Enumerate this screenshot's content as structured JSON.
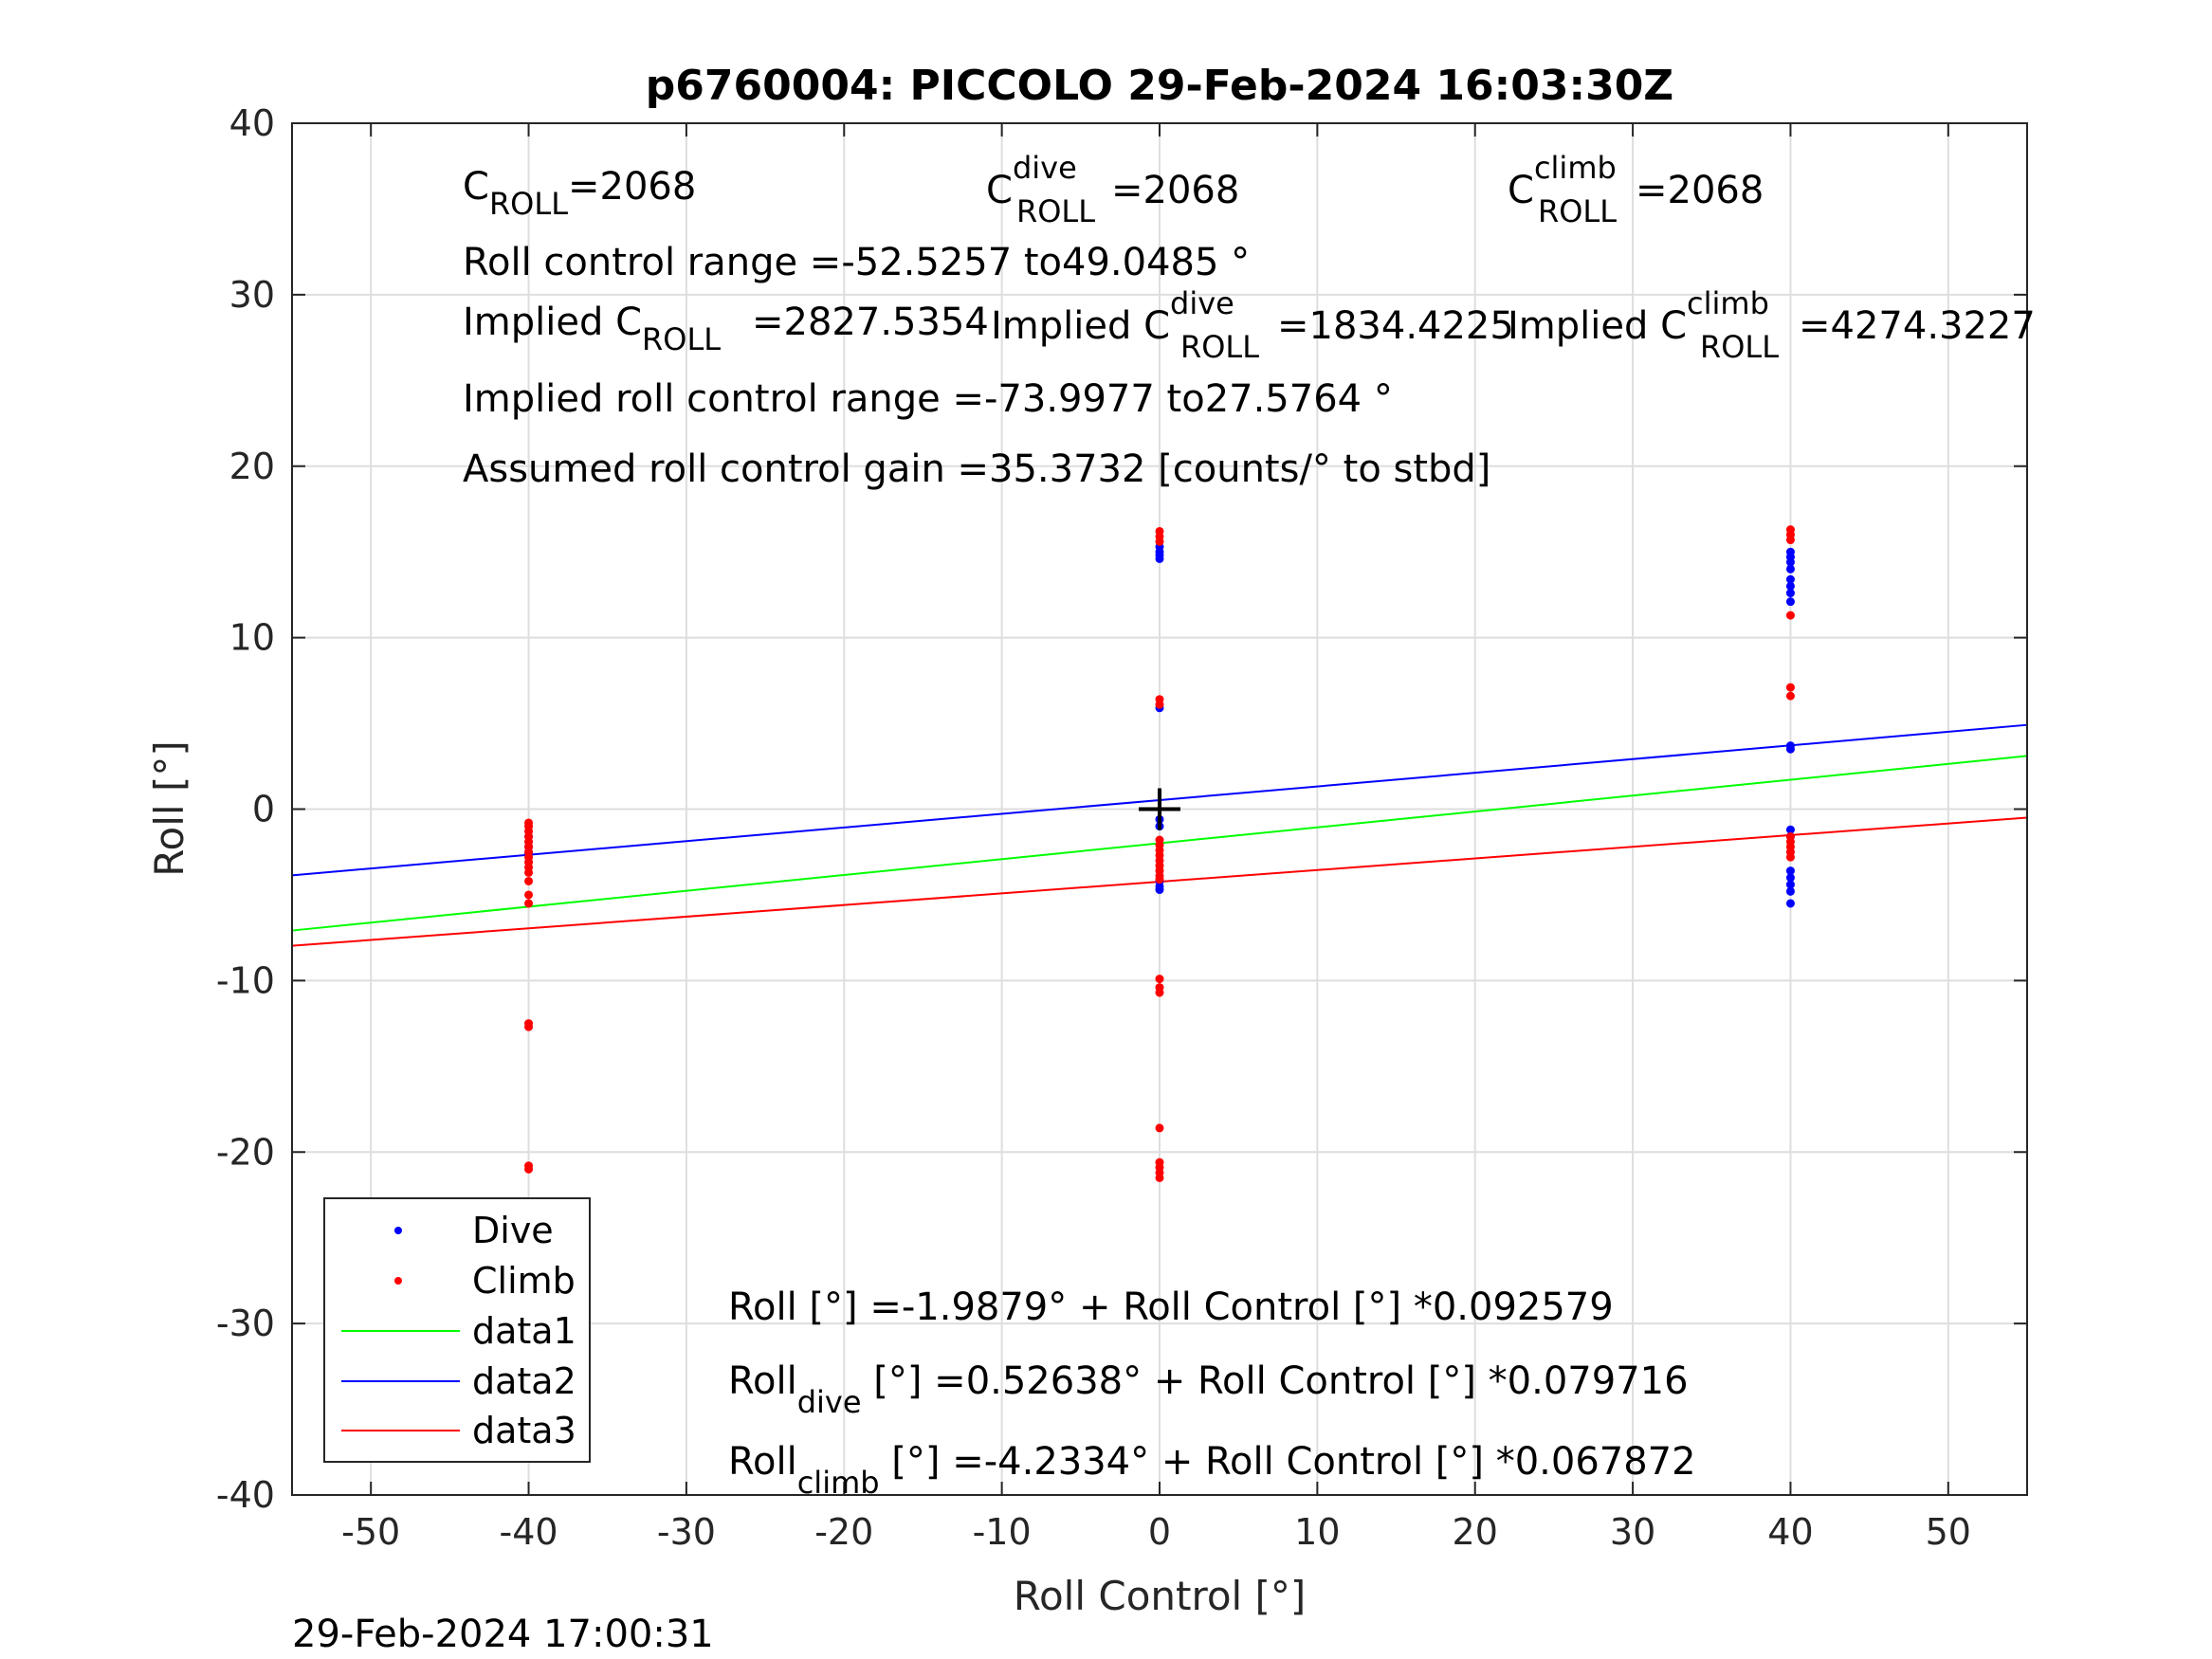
{
  "title": "p6760004: PICCOLO 29-Feb-2024 16:03:30Z",
  "timestamp": "29-Feb-2024 17:00:31",
  "annotations": {
    "c_roll": {
      "base": "C",
      "sub": "ROLL",
      "value": "=2068"
    },
    "c_roll_dive": {
      "base": "C",
      "sup": "dive",
      "sub": "ROLL",
      "value": "=2068"
    },
    "c_roll_climb": {
      "base": "C",
      "sup": "climb",
      "sub": "ROLL",
      "value": "=2068"
    },
    "roll_control_range": "Roll control range =-52.5257 to49.0485 °",
    "implied_c_roll": {
      "prefix": "Implied C",
      "sub": "ROLL",
      "value": "=2827.5354"
    },
    "implied_c_roll_dive": {
      "prefix": "Implied C",
      "sup": "dive",
      "sub": "ROLL",
      "value": "=1834.4225"
    },
    "implied_c_roll_climb": {
      "prefix": "Implied C",
      "sup": "climb",
      "sub": "ROLL",
      "value": "=4274.3227"
    },
    "implied_range": "Implied roll control range =-73.9977 to27.5764 °",
    "assumed_gain": "Assumed roll control gain =35.3732 [counts/° to stbd]",
    "fit_all": "Roll [°] =-1.9879° + Roll Control [°] *0.092579",
    "fit_dive": {
      "base": "Roll",
      "sub": "dive",
      "rest": " [°] =0.52638° + Roll Control [°] *0.079716"
    },
    "fit_climb": {
      "base": "Roll",
      "sub": "climb",
      "rest": " [°] =-4.2334° + Roll Control [°] *0.067872"
    }
  },
  "chart_data": {
    "type": "scatter",
    "title": "p6760004: PICCOLO 29-Feb-2024 16:03:30Z",
    "xlabel": "Roll Control [°]",
    "ylabel": "Roll [°]",
    "xlim": [
      -55,
      55
    ],
    "ylim": [
      -40,
      40
    ],
    "xticks": [
      -50,
      -40,
      -30,
      -20,
      -10,
      0,
      10,
      20,
      30,
      40,
      50
    ],
    "yticks": [
      -40,
      -30,
      -20,
      -10,
      0,
      10,
      20,
      30,
      40
    ],
    "grid": true,
    "legend_position": "bottom-left",
    "series": [
      {
        "name": "Dive",
        "kind": "points",
        "color": "#0000ff",
        "points": [
          [
            -40,
            -1.6
          ],
          [
            -40,
            -2.2
          ],
          [
            -40,
            -2.6
          ],
          [
            0,
            15.3
          ],
          [
            0,
            15.0
          ],
          [
            0,
            14.8
          ],
          [
            0,
            14.6
          ],
          [
            0,
            5.9
          ],
          [
            0,
            -0.6
          ],
          [
            0,
            -1.0
          ],
          [
            0,
            -4.2
          ],
          [
            0,
            -4.5
          ],
          [
            0,
            -4.7
          ],
          [
            40,
            15.0
          ],
          [
            40,
            14.7
          ],
          [
            40,
            14.4
          ],
          [
            40,
            14.0
          ],
          [
            40,
            13.4
          ],
          [
            40,
            13.0
          ],
          [
            40,
            12.6
          ],
          [
            40,
            12.1
          ],
          [
            40,
            3.7
          ],
          [
            40,
            3.5
          ],
          [
            40,
            -1.2
          ],
          [
            40,
            -1.6
          ],
          [
            40,
            -3.6
          ],
          [
            40,
            -4.0
          ],
          [
            40,
            -4.4
          ],
          [
            40,
            -4.8
          ],
          [
            40,
            -5.5
          ]
        ]
      },
      {
        "name": "Climb",
        "kind": "points",
        "color": "#ff0000",
        "points": [
          [
            -40,
            -0.8
          ],
          [
            -40,
            -1.0
          ],
          [
            -40,
            -1.3
          ],
          [
            -40,
            -1.6
          ],
          [
            -40,
            -1.9
          ],
          [
            -40,
            -2.2
          ],
          [
            -40,
            -2.5
          ],
          [
            -40,
            -2.8
          ],
          [
            -40,
            -3.1
          ],
          [
            -40,
            -3.4
          ],
          [
            -40,
            -3.7
          ],
          [
            -40,
            -4.2
          ],
          [
            -40,
            -5.0
          ],
          [
            -40,
            -5.5
          ],
          [
            -40,
            -12.5
          ],
          [
            -40,
            -12.7
          ],
          [
            -40,
            -20.8
          ],
          [
            -40,
            -21.0
          ],
          [
            0,
            16.2
          ],
          [
            0,
            15.9
          ],
          [
            0,
            15.6
          ],
          [
            0,
            6.4
          ],
          [
            0,
            6.1
          ],
          [
            0,
            -1.8
          ],
          [
            0,
            -2.1
          ],
          [
            0,
            -2.4
          ],
          [
            0,
            -2.7
          ],
          [
            0,
            -3.0
          ],
          [
            0,
            -3.3
          ],
          [
            0,
            -3.6
          ],
          [
            0,
            -3.9
          ],
          [
            0,
            -4.1
          ],
          [
            0,
            -9.9
          ],
          [
            0,
            -10.4
          ],
          [
            0,
            -10.7
          ],
          [
            0,
            -18.6
          ],
          [
            0,
            -20.6
          ],
          [
            0,
            -20.9
          ],
          [
            0,
            -21.2
          ],
          [
            0,
            -21.5
          ],
          [
            40,
            16.3
          ],
          [
            40,
            16.0
          ],
          [
            40,
            15.7
          ],
          [
            40,
            11.3
          ],
          [
            40,
            7.1
          ],
          [
            40,
            6.6
          ],
          [
            40,
            -1.6
          ],
          [
            40,
            -1.9
          ],
          [
            40,
            -2.2
          ],
          [
            40,
            -2.5
          ],
          [
            40,
            -2.8
          ]
        ]
      },
      {
        "name": "data1",
        "kind": "line",
        "color": "#00ff00",
        "points": [
          [
            -55,
            -7.08
          ],
          [
            55,
            3.1
          ]
        ]
      },
      {
        "name": "data2",
        "kind": "line",
        "color": "#0000ff",
        "points": [
          [
            -55,
            -3.86
          ],
          [
            55,
            4.91
          ]
        ]
      },
      {
        "name": "data3",
        "kind": "line",
        "color": "#ff0000",
        "points": [
          [
            -55,
            -7.97
          ],
          [
            55,
            -0.5
          ]
        ]
      }
    ],
    "marker": {
      "type": "plus",
      "x": 0,
      "y": 0,
      "color": "#000000"
    }
  }
}
